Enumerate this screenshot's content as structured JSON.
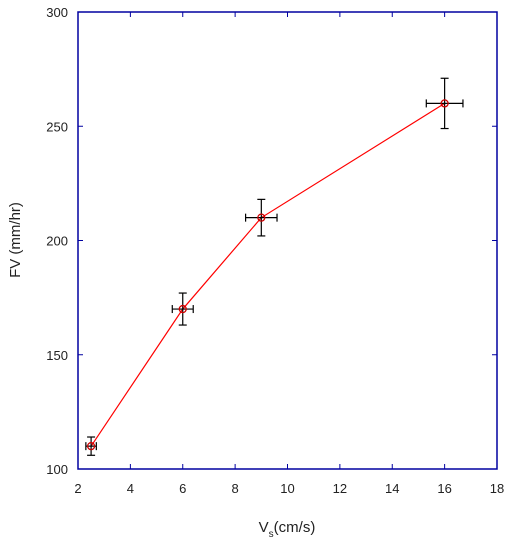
{
  "chart_data": {
    "type": "scatter",
    "xlabel_main": "V",
    "xlabel_sub": "s",
    "xlabel_rest": "(cm/s)",
    "ylabel": "FV (mm/hr)",
    "xlim": [
      2,
      18
    ],
    "ylim": [
      100,
      300
    ],
    "xticks": [
      2,
      4,
      6,
      8,
      10,
      12,
      14,
      16,
      18
    ],
    "yticks": [
      100,
      150,
      200,
      250,
      300
    ],
    "connected": true,
    "colors": {
      "frame": "#0000a0",
      "line": "#ff0000",
      "marker": "#cc0000",
      "errorbar": "#000000"
    },
    "points": [
      {
        "x": 2.5,
        "y": 110,
        "xerr": 0.2,
        "yerr": 4
      },
      {
        "x": 6,
        "y": 170,
        "xerr": 0.4,
        "yerr": 7
      },
      {
        "x": 9,
        "y": 210,
        "xerr": 0.6,
        "yerr": 8
      },
      {
        "x": 16,
        "y": 260,
        "xerr": 0.7,
        "yerr": 11
      }
    ]
  }
}
